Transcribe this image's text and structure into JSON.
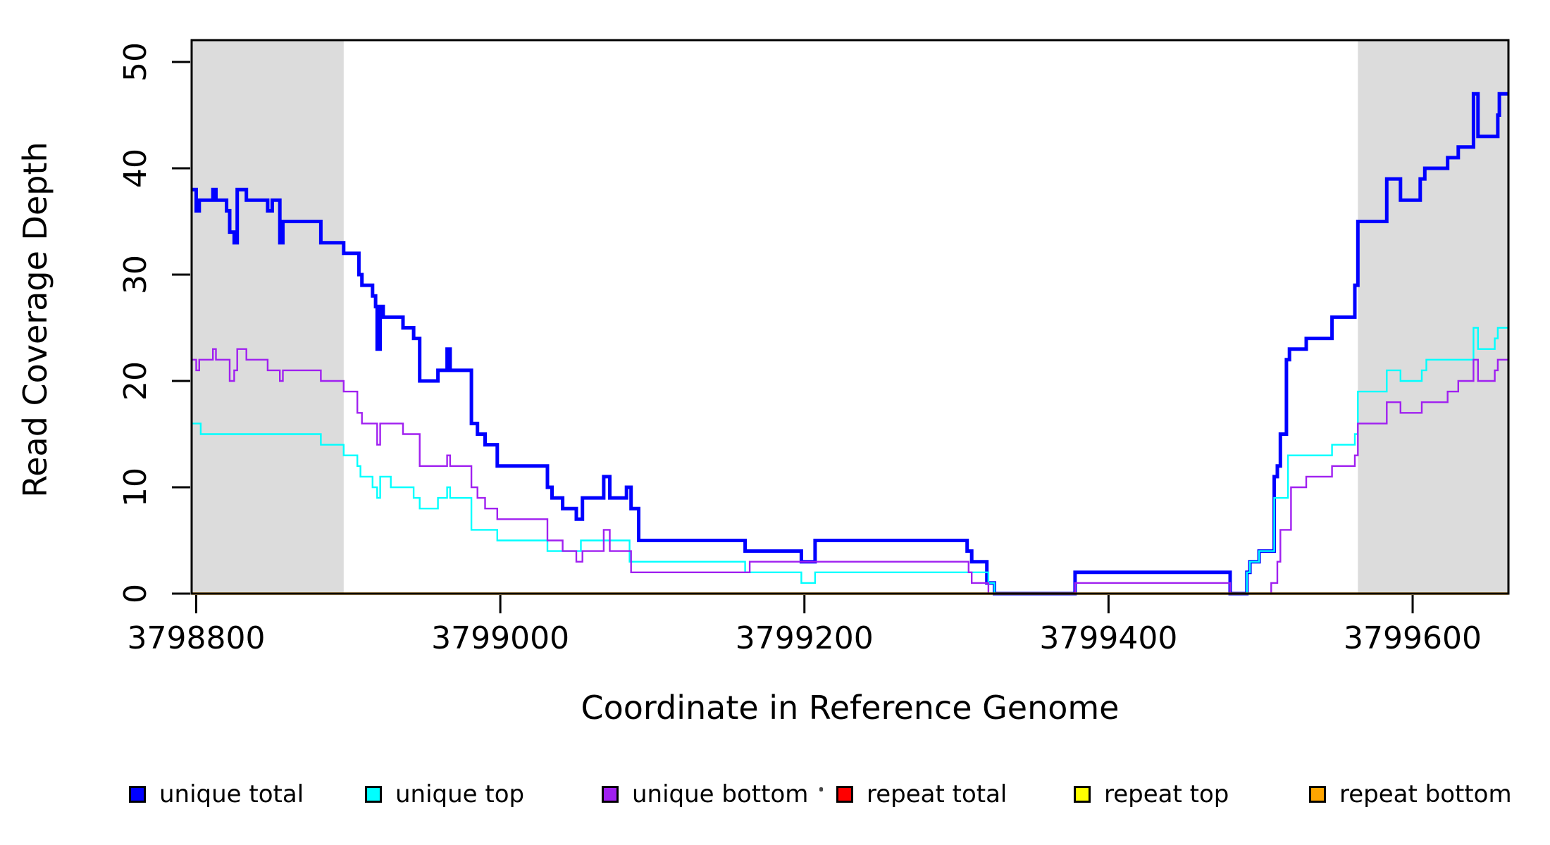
{
  "chart_data": {
    "type": "line",
    "step": "post",
    "title": "",
    "xlabel": "Coordinate in Reference Genome",
    "ylabel": "Read Coverage Depth",
    "xlim": [
      3798797,
      3799663
    ],
    "ylim": [
      0,
      52.05
    ],
    "xticks": [
      3798800,
      3799000,
      3799200,
      3799400,
      3799600
    ],
    "yticks": [
      0,
      10,
      20,
      30,
      40,
      50
    ],
    "grid": false,
    "legend_position": "bottom",
    "background_color": "#ffffff",
    "axis_color": "#000000",
    "shade_color": "#dcdcdc",
    "shaded_regions": [
      {
        "x0": 3798797,
        "x1": 3798897
      },
      {
        "x0": 3799564,
        "x1": 3799663
      }
    ],
    "series": [
      {
        "name": "unique total",
        "color": "#0000ff",
        "width": 5,
        "points": [
          [
            3798797,
            38
          ],
          [
            3798800,
            36
          ],
          [
            3798802,
            37
          ],
          [
            3798811,
            38
          ],
          [
            3798813,
            37
          ],
          [
            3798820,
            36
          ],
          [
            3798822,
            34
          ],
          [
            3798825,
            33
          ],
          [
            3798827,
            38
          ],
          [
            3798833,
            37
          ],
          [
            3798847,
            36
          ],
          [
            3798850,
            37
          ],
          [
            3798855,
            33
          ],
          [
            3798857,
            35
          ],
          [
            3798882,
            33
          ],
          [
            3798897,
            32
          ],
          [
            3798907,
            30
          ],
          [
            3798909,
            29
          ],
          [
            3798916,
            28
          ],
          [
            3798918,
            27
          ],
          [
            3798919,
            23
          ],
          [
            3798921,
            27
          ],
          [
            3798923,
            26
          ],
          [
            3798936,
            25
          ],
          [
            3798943,
            24
          ],
          [
            3798947,
            20
          ],
          [
            3798959,
            21
          ],
          [
            3798965,
            23
          ],
          [
            3798967,
            21
          ],
          [
            3798981,
            16
          ],
          [
            3798985,
            15
          ],
          [
            3798990,
            14
          ],
          [
            3798998,
            12
          ],
          [
            3799031,
            10
          ],
          [
            3799034,
            9
          ],
          [
            3799041,
            8
          ],
          [
            3799050,
            7
          ],
          [
            3799054,
            9
          ],
          [
            3799068,
            11
          ],
          [
            3799072,
            9
          ],
          [
            3799083,
            10
          ],
          [
            3799086,
            8
          ],
          [
            3799091,
            5
          ],
          [
            3799161,
            4
          ],
          [
            3799198,
            3
          ],
          [
            3799207,
            5
          ],
          [
            3799307,
            4
          ],
          [
            3799310,
            3
          ],
          [
            3799320,
            1
          ],
          [
            3799325,
            0
          ],
          [
            3799378,
            2
          ],
          [
            3799480,
            0
          ],
          [
            3799491,
            2
          ],
          [
            3799493,
            3
          ],
          [
            3799499,
            4
          ],
          [
            3799509,
            11
          ],
          [
            3799511,
            12
          ],
          [
            3799513,
            15
          ],
          [
            3799517,
            22
          ],
          [
            3799519,
            23
          ],
          [
            3799530,
            24
          ],
          [
            3799547,
            26
          ],
          [
            3799562,
            29
          ],
          [
            3799564,
            35
          ],
          [
            3799583,
            39
          ],
          [
            3799592,
            37
          ],
          [
            3799605,
            39
          ],
          [
            3799608,
            40
          ],
          [
            3799623,
            41
          ],
          [
            3799630,
            42
          ],
          [
            3799640,
            47
          ],
          [
            3799643,
            43
          ],
          [
            3799656,
            45
          ],
          [
            3799657,
            47
          ]
        ]
      },
      {
        "name": "unique top",
        "color": "#00ffff",
        "width": 2.4,
        "points": [
          [
            3798797,
            16
          ],
          [
            3798803,
            15
          ],
          [
            3798882,
            14
          ],
          [
            3798897,
            13
          ],
          [
            3798906,
            12
          ],
          [
            3798908,
            11
          ],
          [
            3798916,
            10
          ],
          [
            3798919,
            9
          ],
          [
            3798921,
            11
          ],
          [
            3798928,
            10
          ],
          [
            3798943,
            9
          ],
          [
            3798947,
            8
          ],
          [
            3798959,
            9
          ],
          [
            3798965,
            10
          ],
          [
            3798967,
            9
          ],
          [
            3798981,
            6
          ],
          [
            3798998,
            5
          ],
          [
            3799031,
            4
          ],
          [
            3799053,
            5
          ],
          [
            3799085,
            3
          ],
          [
            3799161,
            2
          ],
          [
            3799198,
            1
          ],
          [
            3799207,
            2
          ],
          [
            3799321,
            1
          ],
          [
            3799325,
            0
          ],
          [
            3799491,
            2
          ],
          [
            3799493,
            3
          ],
          [
            3799499,
            4
          ],
          [
            3799509,
            9
          ],
          [
            3799518,
            13
          ],
          [
            3799547,
            14
          ],
          [
            3799562,
            15
          ],
          [
            3799564,
            19
          ],
          [
            3799583,
            21
          ],
          [
            3799592,
            20
          ],
          [
            3799606,
            21
          ],
          [
            3799609,
            22
          ],
          [
            3799640,
            25
          ],
          [
            3799643,
            23
          ],
          [
            3799654,
            24
          ],
          [
            3799656,
            25
          ]
        ]
      },
      {
        "name": "unique bottom",
        "color": "#a020f0",
        "width": 2.4,
        "points": [
          [
            3798797,
            22
          ],
          [
            3798800,
            21
          ],
          [
            3798802,
            22
          ],
          [
            3798811,
            23
          ],
          [
            3798813,
            22
          ],
          [
            3798822,
            20
          ],
          [
            3798825,
            21
          ],
          [
            3798827,
            23
          ],
          [
            3798833,
            22
          ],
          [
            3798847,
            21
          ],
          [
            3798855,
            20
          ],
          [
            3798857,
            21
          ],
          [
            3798882,
            20
          ],
          [
            3798897,
            19
          ],
          [
            3798906,
            17
          ],
          [
            3798909,
            16
          ],
          [
            3798919,
            14
          ],
          [
            3798921,
            16
          ],
          [
            3798936,
            15
          ],
          [
            3798947,
            12
          ],
          [
            3798965,
            13
          ],
          [
            3798967,
            12
          ],
          [
            3798981,
            10
          ],
          [
            3798985,
            9
          ],
          [
            3798990,
            8
          ],
          [
            3798998,
            7
          ],
          [
            3799031,
            5
          ],
          [
            3799041,
            4
          ],
          [
            3799050,
            3
          ],
          [
            3799054,
            4
          ],
          [
            3799068,
            6
          ],
          [
            3799072,
            4
          ],
          [
            3799086,
            2
          ],
          [
            3799164,
            3
          ],
          [
            3799308,
            2
          ],
          [
            3799310,
            1
          ],
          [
            3799321,
            0
          ],
          [
            3799378,
            1
          ],
          [
            3799480,
            0
          ],
          [
            3799507,
            1
          ],
          [
            3799511,
            3
          ],
          [
            3799513,
            6
          ],
          [
            3799520,
            10
          ],
          [
            3799530,
            11
          ],
          [
            3799547,
            12
          ],
          [
            3799562,
            13
          ],
          [
            3799564,
            16
          ],
          [
            3799583,
            18
          ],
          [
            3799592,
            17
          ],
          [
            3799606,
            18
          ],
          [
            3799623,
            19
          ],
          [
            3799630,
            20
          ],
          [
            3799640,
            22
          ],
          [
            3799643,
            20
          ],
          [
            3799654,
            21
          ],
          [
            3799656,
            22
          ]
        ]
      },
      {
        "name": "repeat total",
        "color": "#ff0000",
        "width": 2.4,
        "points": [
          [
            3798797,
            0
          ]
        ]
      },
      {
        "name": "repeat top",
        "color": "#ffff00",
        "width": 2.4,
        "points": [
          [
            3798797,
            0
          ]
        ]
      },
      {
        "name": "repeat bottom",
        "color": "#ffa500",
        "width": 3.6,
        "points": [
          [
            3798797,
            0
          ]
        ]
      }
    ]
  },
  "legend": {
    "item_lefts": [
      183,
      518,
      854,
      1187,
      1524,
      1858
    ]
  }
}
